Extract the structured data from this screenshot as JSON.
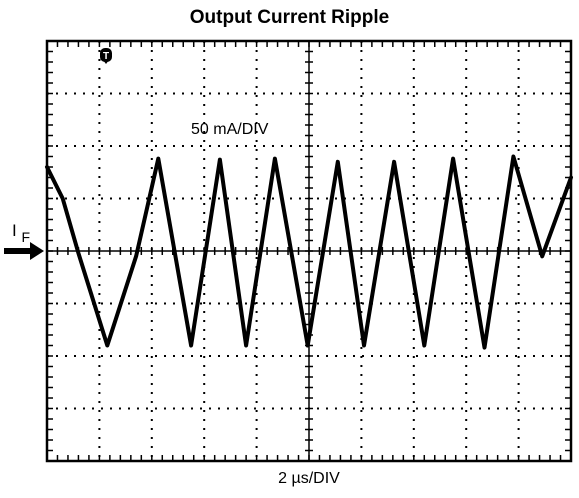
{
  "title": "Output Current Ripple",
  "chart_data": {
    "type": "line",
    "title": "Output Current Ripple",
    "xlabel": "2 µs/DIV",
    "ylabel": "I_F",
    "annotation": "50 mA/DIV",
    "trigger_marker": "T",
    "ground_marker_label": "I",
    "ground_marker_subscript": "F",
    "x_unit": "µs",
    "y_unit": "mA",
    "x_per_div": 2,
    "y_per_div": 50,
    "divisions_x": 10,
    "divisions_y": 8,
    "xlim": [
      0,
      20
    ],
    "ylim": [
      -200,
      200
    ],
    "grid": true,
    "series": [
      {
        "x": [
          0.0,
          0.6,
          1.2,
          2.3,
          3.4,
          4.25,
          5.5,
          6.6,
          7.6,
          8.7,
          9.95,
          11.1,
          12.1,
          13.25,
          14.4,
          15.5,
          16.7,
          17.8,
          18.9,
          20.0
        ],
        "y": [
          80,
          50,
          -2,
          -90,
          -5,
          88,
          -90,
          87,
          -90,
          88,
          -90,
          85,
          -90,
          85,
          -90,
          88,
          -92,
          90,
          -5,
          70
        ]
      }
    ]
  }
}
